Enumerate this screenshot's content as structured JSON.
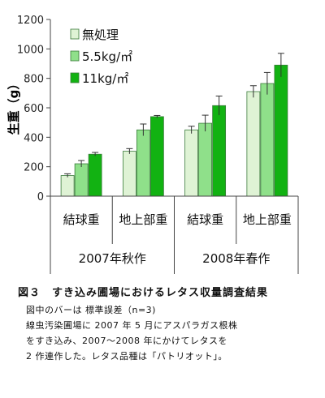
{
  "chart_data": {
    "type": "bar",
    "ylabel": "生重（g）",
    "ylim": [
      0,
      1200
    ],
    "yticks": [
      0,
      200,
      400,
      600,
      800,
      1000,
      1200
    ],
    "grid": false,
    "legend_position": "top-left",
    "groups": [
      {
        "season": "2007年秋作",
        "categories": [
          "結球重",
          "地上部重"
        ]
      },
      {
        "season": "2008年春作",
        "categories": [
          "結球重",
          "地上部重"
        ]
      }
    ],
    "categories": [
      "結球重",
      "地上部重",
      "結球重",
      "地上部重"
    ],
    "series": [
      {
        "name": "無処理",
        "color": "#dff3d5",
        "values": [
          140,
          305,
          450,
          710
        ],
        "errors": [
          12,
          18,
          25,
          40
        ]
      },
      {
        "name": "5.5kg/㎡",
        "color": "#8fe08a",
        "values": [
          220,
          450,
          495,
          765
        ],
        "errors": [
          22,
          40,
          55,
          75
        ]
      },
      {
        "name": "11kg/㎡",
        "color": "#12b212",
        "values": [
          285,
          540,
          615,
          890
        ],
        "errors": [
          12,
          8,
          65,
          80
        ]
      }
    ]
  },
  "caption": {
    "title": "図３　すき込み圃場におけるレタス収量調査結果",
    "lines": [
      "図中のバーは 標準誤差（n=3)",
      "線虫汚染圃場に 2007 年 5 月にアスパラガス根株",
      "をすき込み、2007～2008 年にかけてレタスを",
      "2 作連作した。レタス品種は「パトリオット」。"
    ]
  }
}
